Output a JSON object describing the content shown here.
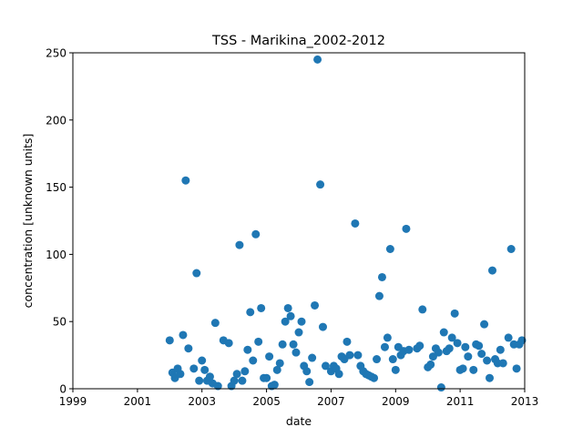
{
  "chart_data": {
    "type": "scatter",
    "title": "TSS - Marikina_2002-2012",
    "xlabel": "date",
    "ylabel": "concentration [unknown units]",
    "xlim": [
      "1999-01-01",
      "2013-01-01"
    ],
    "ylim": [
      0,
      250
    ],
    "xticks": [
      "1999",
      "2001",
      "2003",
      "2005",
      "2007",
      "2009",
      "2011",
      "2013"
    ],
    "yticks": [
      0,
      50,
      100,
      150,
      200,
      250
    ],
    "grid": false,
    "legend": "none",
    "marker_color": "#1f77b4",
    "points": [
      {
        "x": "2002-01-01",
        "y": 36
      },
      {
        "x": "2002-02-01",
        "y": 12
      },
      {
        "x": "2002-03-01",
        "y": 8
      },
      {
        "x": "2002-04-01",
        "y": 15
      },
      {
        "x": "2002-05-01",
        "y": 11
      },
      {
        "x": "2002-06-01",
        "y": 40
      },
      {
        "x": "2002-07-01",
        "y": 155
      },
      {
        "x": "2002-08-01",
        "y": 30
      },
      {
        "x": "2002-10-01",
        "y": 15
      },
      {
        "x": "2002-11-01",
        "y": 86
      },
      {
        "x": "2002-12-01",
        "y": 6
      },
      {
        "x": "2003-01-01",
        "y": 21
      },
      {
        "x": "2003-02-01",
        "y": 14
      },
      {
        "x": "2003-03-01",
        "y": 6
      },
      {
        "x": "2003-04-01",
        "y": 9
      },
      {
        "x": "2003-05-01",
        "y": 4
      },
      {
        "x": "2003-06-01",
        "y": 49
      },
      {
        "x": "2003-07-01",
        "y": 2
      },
      {
        "x": "2003-09-01",
        "y": 36
      },
      {
        "x": "2003-11-01",
        "y": 34
      },
      {
        "x": "2003-12-01",
        "y": 2
      },
      {
        "x": "2004-01-01",
        "y": 6
      },
      {
        "x": "2004-02-01",
        "y": 11
      },
      {
        "x": "2004-03-01",
        "y": 107
      },
      {
        "x": "2004-04-01",
        "y": 6
      },
      {
        "x": "2004-05-01",
        "y": 13
      },
      {
        "x": "2004-06-01",
        "y": 29
      },
      {
        "x": "2004-07-01",
        "y": 57
      },
      {
        "x": "2004-08-01",
        "y": 21
      },
      {
        "x": "2004-09-01",
        "y": 115
      },
      {
        "x": "2004-10-01",
        "y": 35
      },
      {
        "x": "2004-11-01",
        "y": 60
      },
      {
        "x": "2004-12-01",
        "y": 8
      },
      {
        "x": "2005-01-01",
        "y": 8
      },
      {
        "x": "2005-02-01",
        "y": 24
      },
      {
        "x": "2005-03-01",
        "y": 2
      },
      {
        "x": "2005-04-01",
        "y": 3
      },
      {
        "x": "2005-05-01",
        "y": 14
      },
      {
        "x": "2005-06-01",
        "y": 19
      },
      {
        "x": "2005-07-01",
        "y": 33
      },
      {
        "x": "2005-08-01",
        "y": 50
      },
      {
        "x": "2005-09-01",
        "y": 60
      },
      {
        "x": "2005-10-01",
        "y": 54
      },
      {
        "x": "2005-11-01",
        "y": 33
      },
      {
        "x": "2005-12-01",
        "y": 27
      },
      {
        "x": "2006-01-01",
        "y": 42
      },
      {
        "x": "2006-02-01",
        "y": 50
      },
      {
        "x": "2006-03-01",
        "y": 17
      },
      {
        "x": "2006-04-01",
        "y": 13
      },
      {
        "x": "2006-05-01",
        "y": 5
      },
      {
        "x": "2006-06-01",
        "y": 23
      },
      {
        "x": "2006-07-01",
        "y": 62
      },
      {
        "x": "2006-08-01",
        "y": 245
      },
      {
        "x": "2006-09-01",
        "y": 152
      },
      {
        "x": "2006-10-01",
        "y": 46
      },
      {
        "x": "2006-11-01",
        "y": 17
      },
      {
        "x": "2007-01-01",
        "y": 13
      },
      {
        "x": "2007-02-01",
        "y": 17
      },
      {
        "x": "2007-03-01",
        "y": 15
      },
      {
        "x": "2007-04-01",
        "y": 11
      },
      {
        "x": "2007-05-01",
        "y": 24
      },
      {
        "x": "2007-06-01",
        "y": 22
      },
      {
        "x": "2007-07-01",
        "y": 35
      },
      {
        "x": "2007-08-01",
        "y": 25
      },
      {
        "x": "2007-10-01",
        "y": 123
      },
      {
        "x": "2007-11-01",
        "y": 25
      },
      {
        "x": "2007-12-01",
        "y": 17
      },
      {
        "x": "2008-01-01",
        "y": 13
      },
      {
        "x": "2008-02-01",
        "y": 11
      },
      {
        "x": "2008-03-01",
        "y": 10
      },
      {
        "x": "2008-04-01",
        "y": 9
      },
      {
        "x": "2008-05-01",
        "y": 8
      },
      {
        "x": "2008-06-01",
        "y": 22
      },
      {
        "x": "2008-07-01",
        "y": 69
      },
      {
        "x": "2008-08-01",
        "y": 83
      },
      {
        "x": "2008-09-01",
        "y": 31
      },
      {
        "x": "2008-10-01",
        "y": 38
      },
      {
        "x": "2008-11-01",
        "y": 104
      },
      {
        "x": "2008-12-01",
        "y": 22
      },
      {
        "x": "2009-01-01",
        "y": 14
      },
      {
        "x": "2009-02-01",
        "y": 31
      },
      {
        "x": "2009-03-01",
        "y": 25
      },
      {
        "x": "2009-04-01",
        "y": 28
      },
      {
        "x": "2009-05-01",
        "y": 119
      },
      {
        "x": "2009-06-01",
        "y": 29
      },
      {
        "x": "2009-09-01",
        "y": 30
      },
      {
        "x": "2009-10-01",
        "y": 32
      },
      {
        "x": "2009-11-01",
        "y": 59
      },
      {
        "x": "2010-01-01",
        "y": 16
      },
      {
        "x": "2010-02-01",
        "y": 18
      },
      {
        "x": "2010-03-01",
        "y": 24
      },
      {
        "x": "2010-04-01",
        "y": 30
      },
      {
        "x": "2010-05-01",
        "y": 27
      },
      {
        "x": "2010-06-01",
        "y": 1
      },
      {
        "x": "2010-07-01",
        "y": 42
      },
      {
        "x": "2010-08-01",
        "y": 28
      },
      {
        "x": "2010-09-01",
        "y": 30
      },
      {
        "x": "2010-10-01",
        "y": 38
      },
      {
        "x": "2010-11-01",
        "y": 56
      },
      {
        "x": "2010-12-01",
        "y": 34
      },
      {
        "x": "2011-01-01",
        "y": 14
      },
      {
        "x": "2011-02-01",
        "y": 15
      },
      {
        "x": "2011-03-01",
        "y": 31
      },
      {
        "x": "2011-04-01",
        "y": 24
      },
      {
        "x": "2011-06-01",
        "y": 14
      },
      {
        "x": "2011-07-01",
        "y": 33
      },
      {
        "x": "2011-08-01",
        "y": 32
      },
      {
        "x": "2011-09-01",
        "y": 26
      },
      {
        "x": "2011-10-01",
        "y": 48
      },
      {
        "x": "2011-11-01",
        "y": 21
      },
      {
        "x": "2011-12-01",
        "y": 8
      },
      {
        "x": "2012-01-01",
        "y": 88
      },
      {
        "x": "2012-02-01",
        "y": 22
      },
      {
        "x": "2012-03-01",
        "y": 19
      },
      {
        "x": "2012-04-01",
        "y": 29
      },
      {
        "x": "2012-05-01",
        "y": 19
      },
      {
        "x": "2012-07-01",
        "y": 38
      },
      {
        "x": "2012-08-01",
        "y": 104
      },
      {
        "x": "2012-09-01",
        "y": 33
      },
      {
        "x": "2012-10-01",
        "y": 15
      },
      {
        "x": "2012-11-01",
        "y": 33
      },
      {
        "x": "2012-12-01",
        "y": 36
      }
    ]
  }
}
